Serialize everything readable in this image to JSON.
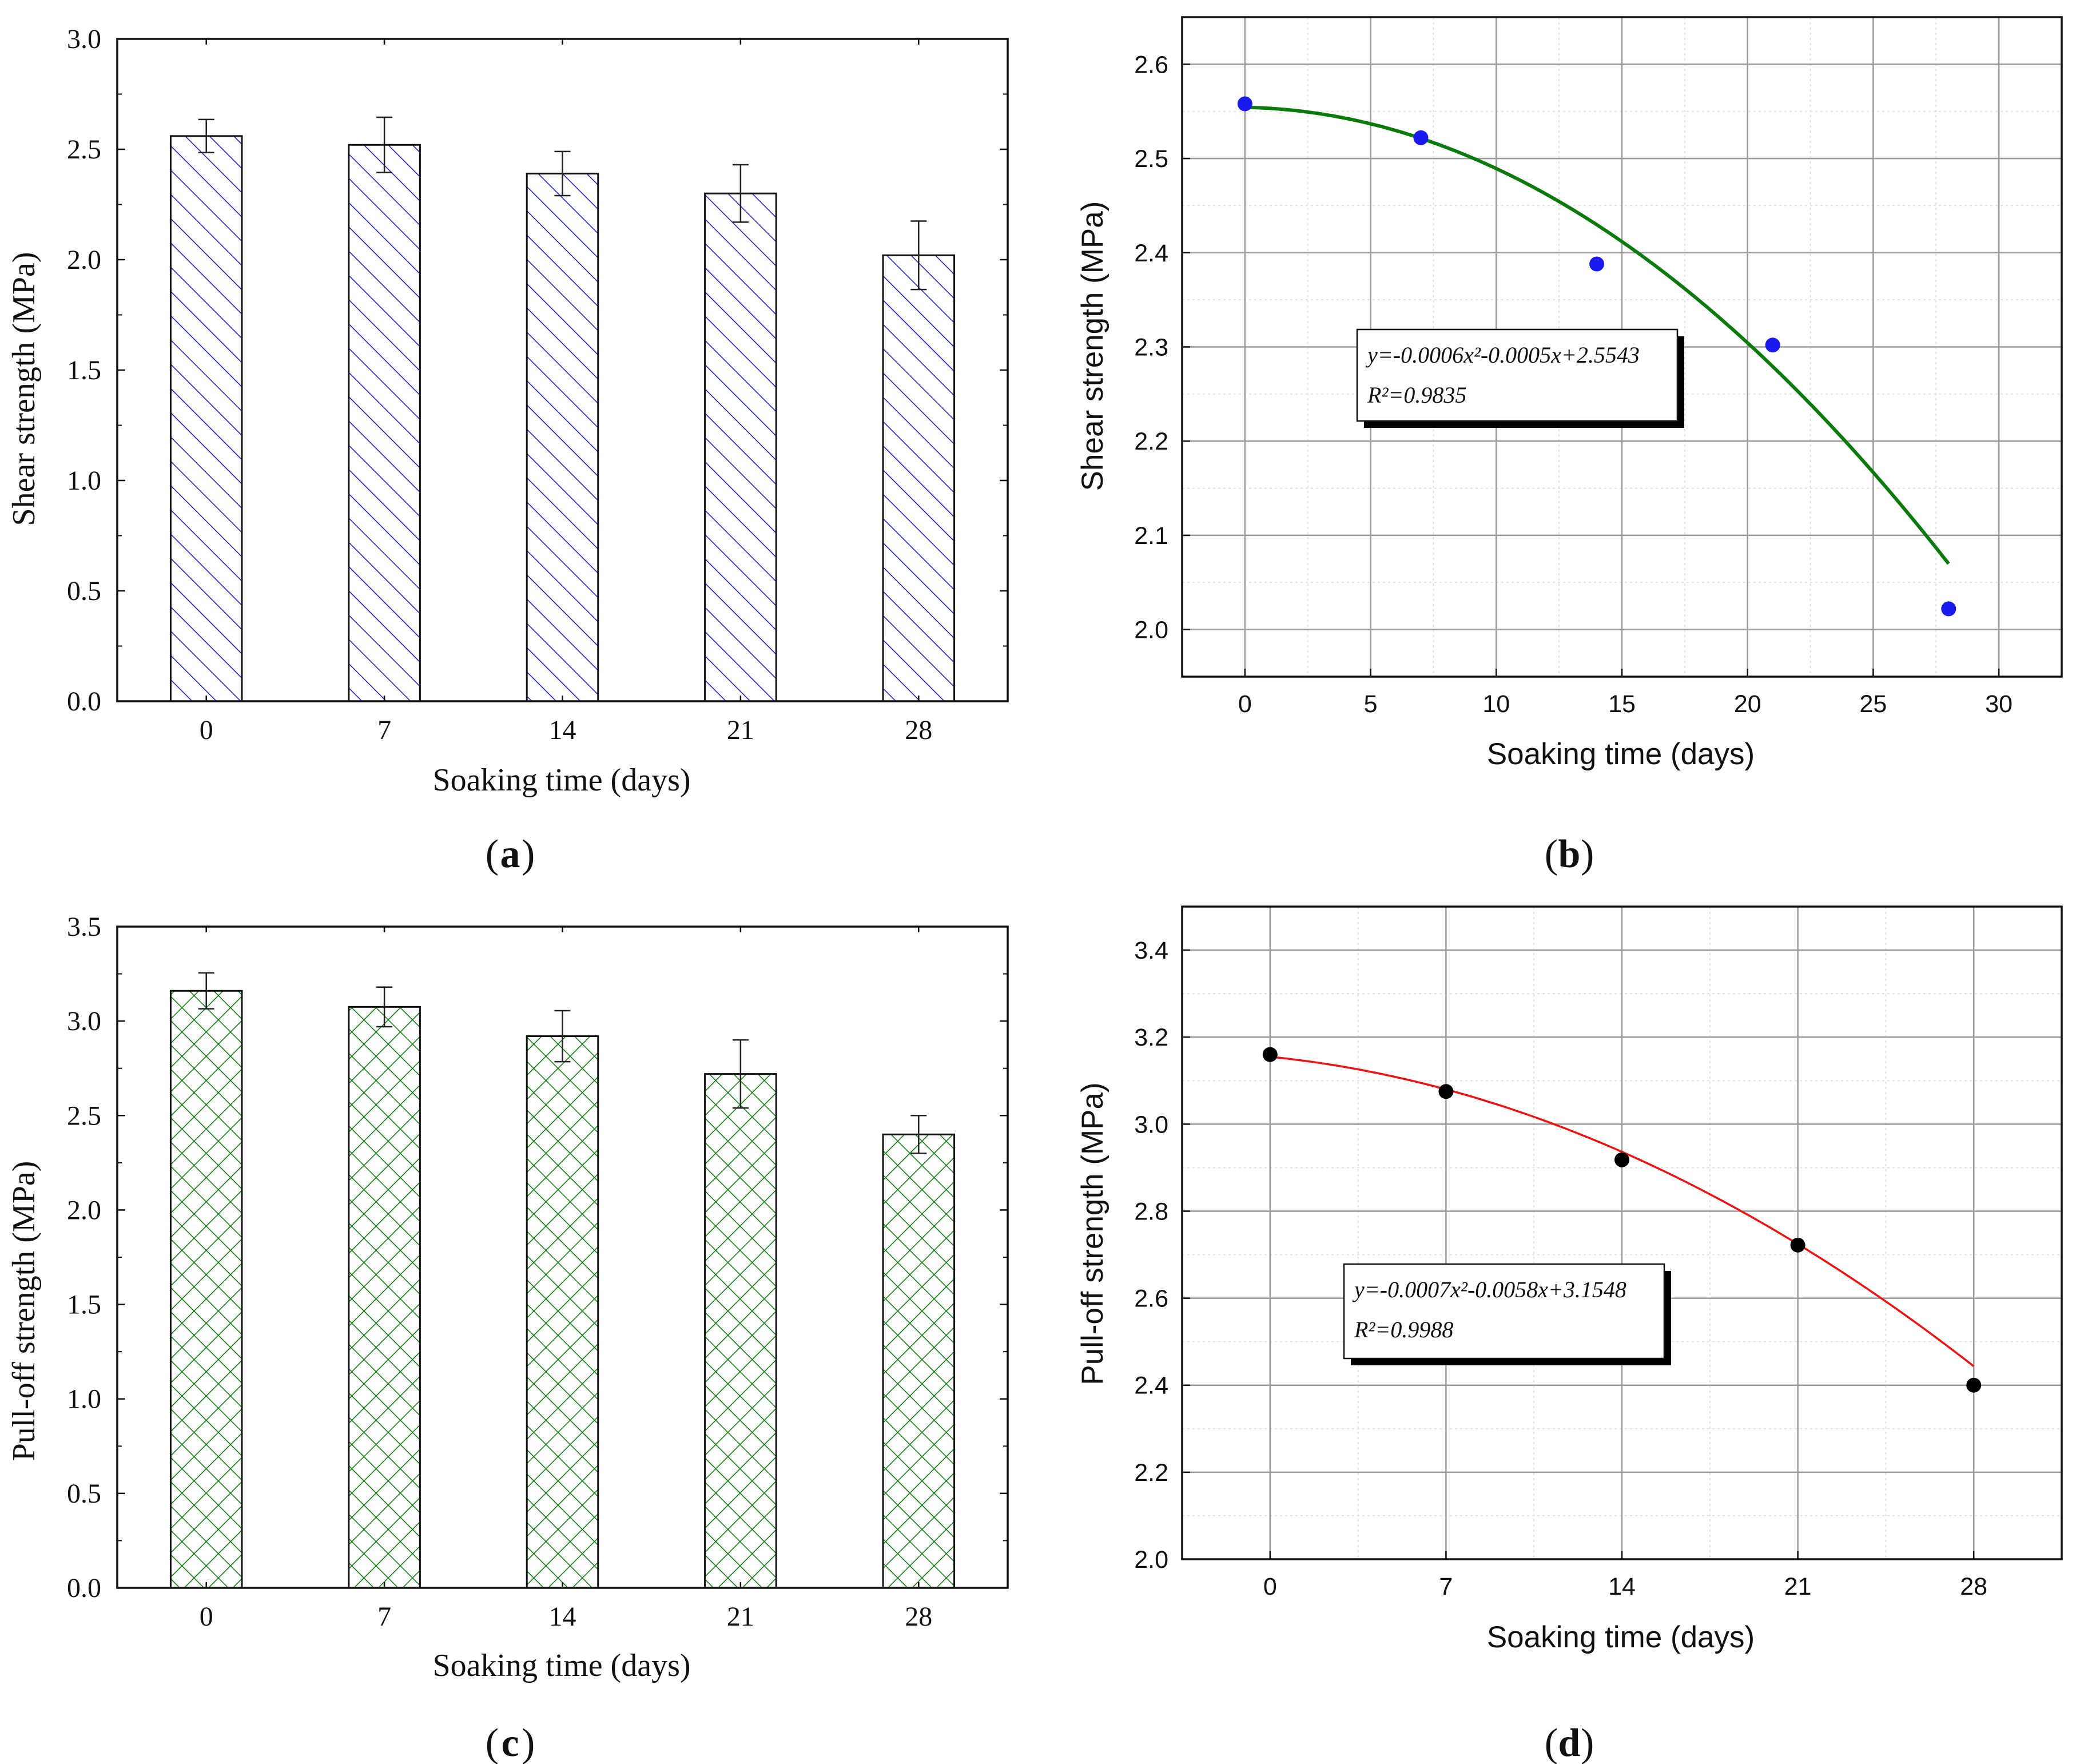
{
  "chart_data": [
    {
      "panel": "a",
      "panel_label": "a",
      "type": "bar",
      "categories": [
        "0",
        "7",
        "14",
        "21",
        "28"
      ],
      "values": [
        2.56,
        2.52,
        2.39,
        2.3,
        2.02
      ],
      "errors": [
        0.075,
        0.125,
        0.1,
        0.13,
        0.155
      ],
      "xlabel": "Soaking time (days)",
      "ylabel": "Shear strength (MPa)",
      "ylim": [
        0,
        3.0
      ],
      "yticks": [
        "0.0",
        "0.5",
        "1.0",
        "1.5",
        "2.0",
        "2.5",
        "3.0"
      ],
      "color": "#1a1acc",
      "pattern": "diagonal-hatch"
    },
    {
      "panel": "b",
      "panel_label": "b",
      "type": "scatter",
      "points": {
        "x": [
          0,
          7,
          14,
          21,
          28
        ],
        "y": [
          2.558,
          2.522,
          2.388,
          2.302,
          2.022
        ]
      },
      "fit": {
        "a": -0.0006,
        "b": -0.0005,
        "c": 2.5543,
        "color": "#0a7a0a"
      },
      "equation": "y=-0.0006x²-0.0005x+2.5543",
      "r_squared_label": "R²=0.9835",
      "xlabel": "Soaking time (days)",
      "ylabel": "Shear strength (MPa)",
      "xlim": [
        -2.5,
        32.5
      ],
      "ylim": [
        1.95,
        2.65
      ],
      "xticks": [
        "0",
        "5",
        "10",
        "15",
        "20",
        "25",
        "30"
      ],
      "yticks": [
        "2.0",
        "2.1",
        "2.2",
        "2.3",
        "2.4",
        "2.5",
        "2.6"
      ],
      "marker_color": "#1a1aee",
      "grid": true
    },
    {
      "panel": "c",
      "panel_label": "c",
      "type": "bar",
      "categories": [
        "0",
        "7",
        "14",
        "21",
        "28"
      ],
      "values": [
        3.16,
        3.075,
        2.92,
        2.72,
        2.4
      ],
      "errors": [
        0.095,
        0.105,
        0.135,
        0.18,
        0.1
      ],
      "xlabel": "Soaking time (days)",
      "ylabel": "Pull-off strength (MPa)",
      "ylim": [
        0,
        3.5
      ],
      "yticks": [
        "0.0",
        "0.5",
        "1.0",
        "1.5",
        "2.0",
        "2.5",
        "3.0",
        "3.5"
      ],
      "color": "#0a7a0a",
      "pattern": "cross-hatch"
    },
    {
      "panel": "d",
      "panel_label": "d",
      "type": "scatter",
      "points": {
        "x": [
          0,
          7,
          14,
          21,
          28
        ],
        "y": [
          3.16,
          3.075,
          2.918,
          2.722,
          2.4
        ]
      },
      "fit": {
        "a": -0.0007,
        "b": -0.0058,
        "c": 3.1548,
        "color": "#ee1111"
      },
      "equation": "y=-0.0007x²-0.0058x+3.1548",
      "r_squared_label": "R²=0.9988",
      "xlabel": "Soaking time (days)",
      "ylabel": "Pull-off strength (MPa)",
      "xlim": [
        -3.5,
        31.5
      ],
      "ylim": [
        2.0,
        3.5
      ],
      "xticks": [
        "0",
        "7",
        "14",
        "21",
        "28"
      ],
      "yticks": [
        "2.0",
        "2.2",
        "2.4",
        "2.6",
        "2.8",
        "3.0",
        "3.2",
        "3.4"
      ],
      "marker_color": "#000000",
      "grid": true
    }
  ]
}
